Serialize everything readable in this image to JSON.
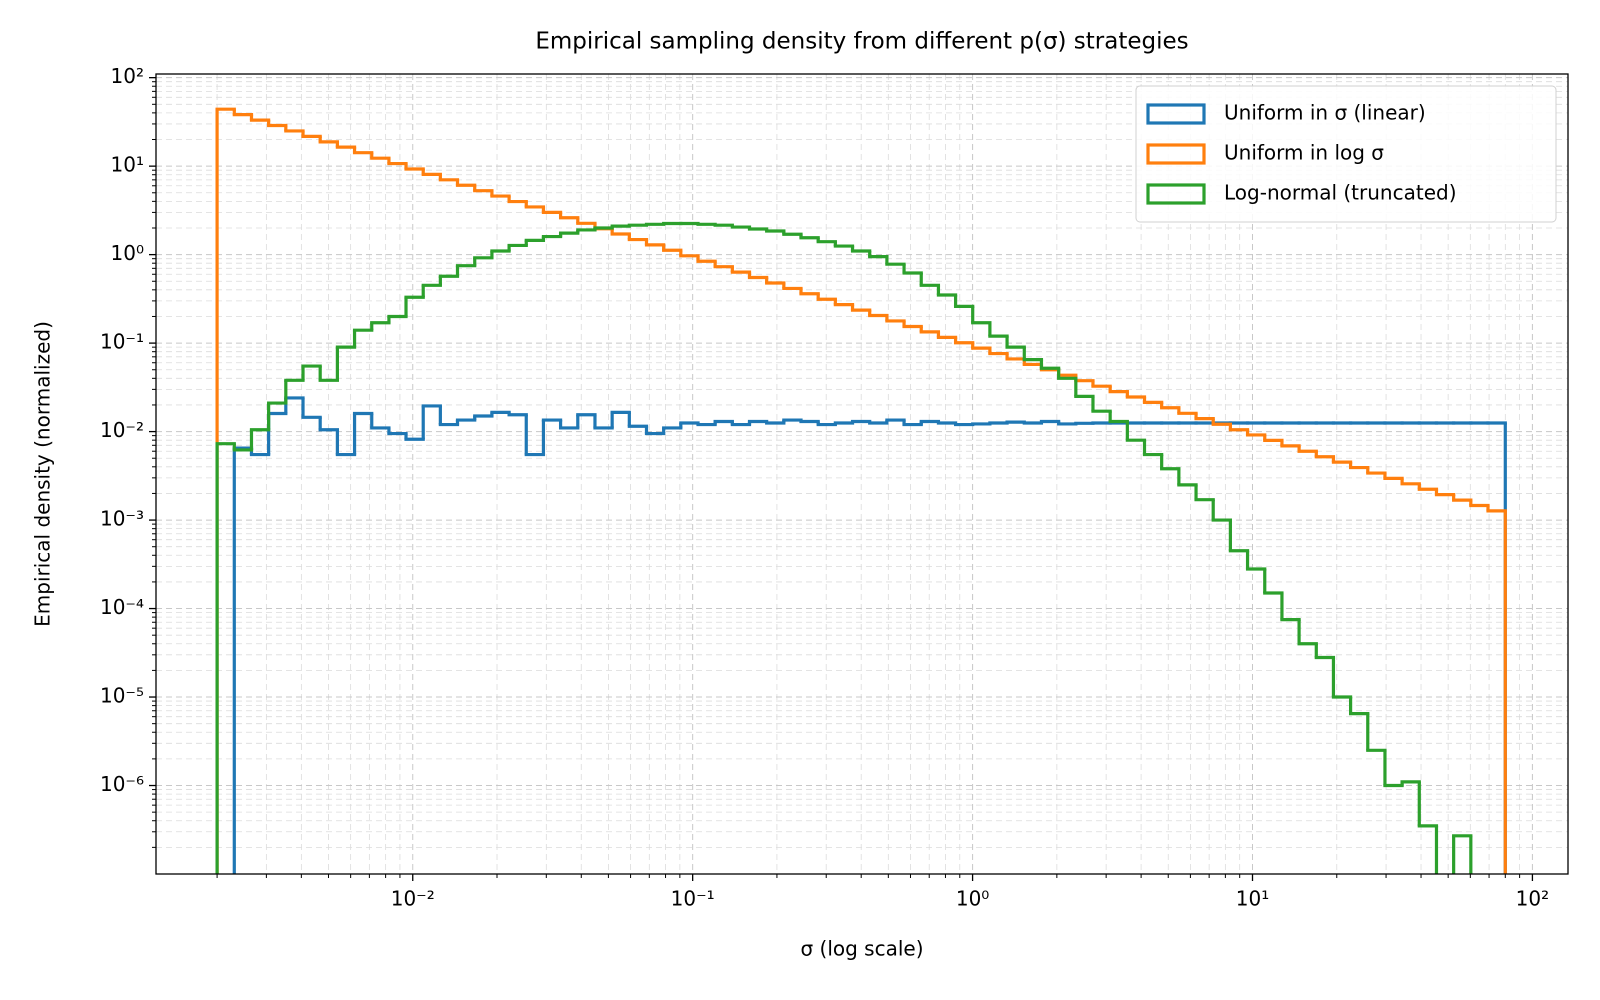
{
  "chart_data": {
    "type": "histogram_step",
    "title": "Empirical sampling density from different p(σ) strategies",
    "xlabel": "σ (log scale)",
    "ylabel": "Empirical density (normalized)",
    "xscale": "log",
    "yscale": "log",
    "grid": true,
    "minor_grid": true,
    "legend_loc": "upper right",
    "xlim": [
      0.00121,
      134
    ],
    "ylim": [
      1e-07,
      110
    ],
    "xticks": [
      {
        "value": 0.01,
        "label": "10⁻²"
      },
      {
        "value": 0.1,
        "label": "10⁻¹"
      },
      {
        "value": 1,
        "label": "10⁰"
      },
      {
        "value": 10,
        "label": "10¹"
      },
      {
        "value": 100,
        "label": "10²"
      }
    ],
    "yticks": [
      {
        "value": 1e-06,
        "label": "10⁻⁶"
      },
      {
        "value": 1e-05,
        "label": "10⁻⁵"
      },
      {
        "value": 0.0001,
        "label": "10⁻⁴"
      },
      {
        "value": 0.001,
        "label": "10⁻³"
      },
      {
        "value": 0.01,
        "label": "10⁻²"
      },
      {
        "value": 0.1,
        "label": "10⁻¹"
      },
      {
        "value": 1,
        "label": "10⁰"
      },
      {
        "value": 10,
        "label": "10¹"
      },
      {
        "value": 100,
        "label": "10²"
      }
    ],
    "xminorticks": [
      0.002,
      0.003,
      0.004,
      0.005,
      0.006,
      0.007,
      0.008,
      0.009,
      0.02,
      0.03,
      0.04,
      0.05,
      0.06,
      0.07,
      0.08,
      0.09,
      0.2,
      0.3,
      0.4,
      0.5,
      0.6,
      0.7,
      0.8,
      0.9,
      2,
      3,
      4,
      5,
      6,
      7,
      8,
      9,
      20,
      30,
      40,
      50,
      60,
      70,
      80,
      90
    ],
    "yminorticks": [
      2e-07,
      3e-07,
      4e-07,
      5e-07,
      6e-07,
      7e-07,
      8e-07,
      9e-07,
      2e-06,
      3e-06,
      4e-06,
      5e-06,
      6e-06,
      7e-06,
      8e-06,
      9e-06,
      2e-05,
      3e-05,
      4e-05,
      5e-05,
      6e-05,
      7e-05,
      8e-05,
      9e-05,
      0.0002,
      0.0003,
      0.0004,
      0.0005,
      0.0006,
      0.0007,
      0.0008,
      0.0009,
      0.002,
      0.003,
      0.004,
      0.005,
      0.006,
      0.007,
      0.008,
      0.009,
      0.02,
      0.03,
      0.04,
      0.05,
      0.06,
      0.07,
      0.08,
      0.09,
      0.2,
      0.3,
      0.4,
      0.5,
      0.6,
      0.7,
      0.8,
      0.9,
      2,
      3,
      4,
      5,
      6,
      7,
      8,
      9,
      20,
      30,
      40,
      50,
      60,
      70,
      80,
      90
    ],
    "bins": [
      0.002,
      0.002304,
      0.002654,
      0.003056,
      0.00352,
      0.004055,
      0.00467,
      0.00538,
      0.006196,
      0.007137,
      0.008221,
      0.009461,
      0.0109,
      0.01255,
      0.01445,
      0.01665,
      0.01918,
      0.02209,
      0.02544,
      0.0293,
      0.03374,
      0.03887,
      0.04477,
      0.05157,
      0.05939,
      0.0684,
      0.07877,
      0.09071,
      0.1045,
      0.1203,
      0.1386,
      0.1596,
      0.1838,
      0.2117,
      0.2438,
      0.2808,
      0.3234,
      0.3725,
      0.429,
      0.4942,
      0.5691,
      0.6555,
      0.7551,
      0.8695,
      1.001,
      1.153,
      1.328,
      1.53,
      1.762,
      2.03,
      2.338,
      2.692,
      3.101,
      3.572,
      4.113,
      4.737,
      5.457,
      6.285,
      7.238,
      8.337,
      9.601,
      11.06,
      12.74,
      14.67,
      16.9,
      19.46,
      22.41,
      25.81,
      29.73,
      34.23,
      39.43,
      45.42,
      52.31,
      60.25,
      69.39,
      80
    ],
    "series": [
      {
        "name": "Uniform in σ (linear)",
        "color": "#1f77b4",
        "values": [
          0,
          0.0065,
          0.0055,
          0.016,
          0.024,
          0.0145,
          0.0105,
          0.0055,
          0.016,
          0.011,
          0.0095,
          0.0082,
          0.0195,
          0.012,
          0.0135,
          0.015,
          0.0165,
          0.0155,
          0.0055,
          0.0135,
          0.011,
          0.0155,
          0.011,
          0.0165,
          0.0115,
          0.0095,
          0.011,
          0.0125,
          0.012,
          0.013,
          0.012,
          0.013,
          0.0125,
          0.0135,
          0.013,
          0.012,
          0.0125,
          0.013,
          0.0125,
          0.0135,
          0.012,
          0.013,
          0.0125,
          0.012,
          0.0122,
          0.0125,
          0.0128,
          0.0125,
          0.013,
          0.0122,
          0.0124,
          0.0125,
          0.0125,
          0.0125,
          0.0125,
          0.0125,
          0.0125,
          0.0125,
          0.0125,
          0.0125,
          0.0125,
          0.0125,
          0.0125,
          0.0125,
          0.0125,
          0.0125,
          0.0125,
          0.0125,
          0.0125,
          0.0125,
          0.0125,
          0.0125,
          0.0125,
          0.0125,
          0.0125
        ]
      },
      {
        "name": "Uniform in log σ",
        "color": "#ff7f0e",
        "values": [
          44.0,
          38.2,
          33.1,
          28.8,
          25.0,
          21.7,
          18.8,
          16.4,
          14.2,
          12.3,
          10.7,
          9.29,
          8.07,
          7.01,
          6.08,
          5.28,
          4.59,
          3.98,
          3.46,
          3.0,
          2.61,
          2.26,
          1.96,
          1.71,
          1.48,
          1.29,
          1.12,
          0.969,
          0.841,
          0.731,
          0.634,
          0.551,
          0.478,
          0.415,
          0.361,
          0.313,
          0.272,
          0.236,
          0.205,
          0.178,
          0.154,
          0.134,
          0.116,
          0.101,
          0.0878,
          0.0762,
          0.0662,
          0.0574,
          0.0499,
          0.0433,
          0.0376,
          0.0326,
          0.0283,
          0.0246,
          0.0214,
          0.0186,
          0.0161,
          0.014,
          0.0121,
          0.0105,
          0.00916,
          0.00795,
          0.0069,
          0.00599,
          0.0052,
          0.00452,
          0.00392,
          0.0034,
          0.00296,
          0.00257,
          0.00223,
          0.00194,
          0.00168,
          0.00146,
          0.00127
        ]
      },
      {
        "name": "Log-normal (truncated)",
        "color": "#2ca02c",
        "values": [
          0.0073,
          0.0062,
          0.0105,
          0.021,
          0.038,
          0.055,
          0.038,
          0.09,
          0.14,
          0.17,
          0.2,
          0.33,
          0.45,
          0.57,
          0.75,
          0.92,
          1.1,
          1.27,
          1.45,
          1.6,
          1.75,
          1.9,
          2.0,
          2.1,
          2.15,
          2.2,
          2.25,
          2.25,
          2.2,
          2.15,
          2.05,
          1.95,
          1.85,
          1.7,
          1.55,
          1.4,
          1.25,
          1.1,
          0.95,
          0.78,
          0.62,
          0.45,
          0.35,
          0.26,
          0.17,
          0.12,
          0.09,
          0.065,
          0.052,
          0.04,
          0.025,
          0.017,
          0.013,
          0.008,
          0.0055,
          0.0038,
          0.0025,
          0.0017,
          0.001,
          0.00045,
          0.00028,
          0.00015,
          7.5e-05,
          4e-05,
          2.8e-05,
          1e-05,
          6.5e-06,
          2.5e-06,
          1e-06,
          1.1e-06,
          3.5e-07,
          0,
          2.7e-07,
          0,
          0
        ]
      }
    ]
  }
}
